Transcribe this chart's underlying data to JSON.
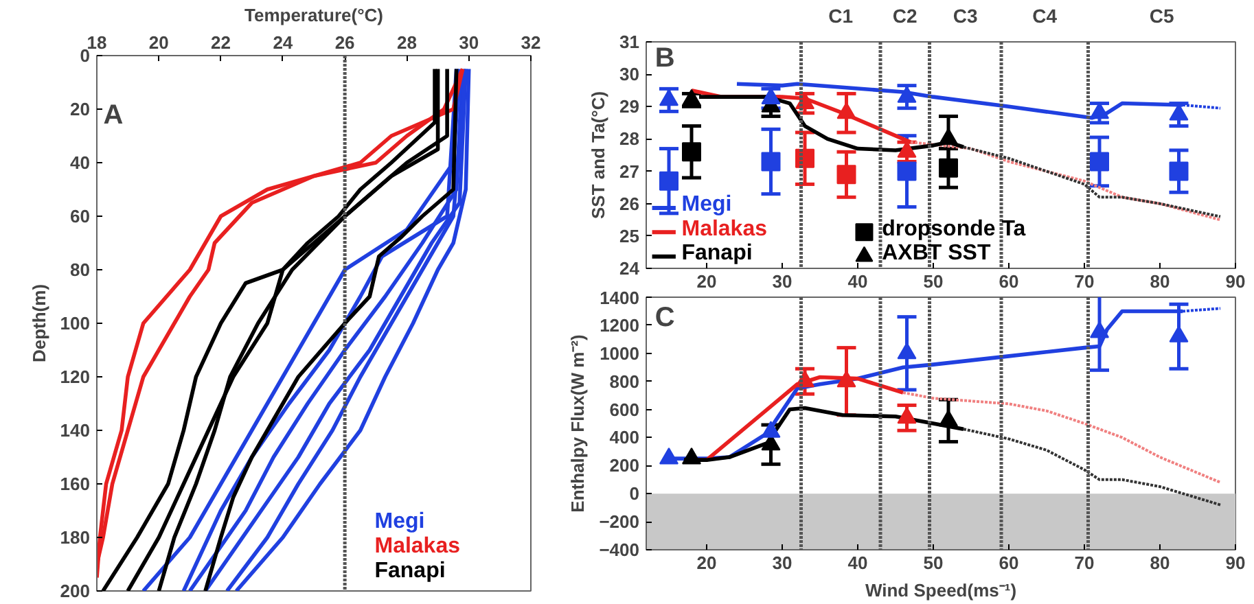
{
  "chart_data": [
    {
      "type": "line",
      "xlabel": "Temperature(°C)",
      "ylabel": "Depth(m)",
      "xlim": [
        18,
        32
      ],
      "xticks": [
        18,
        20,
        22,
        24,
        26,
        28,
        30,
        32
      ],
      "ylim": [
        200,
        0
      ],
      "yticks": [
        0,
        20,
        40,
        60,
        80,
        100,
        120,
        140,
        160,
        180,
        200
      ],
      "grid": false,
      "annotations": [
        "A"
      ],
      "ref_lines": [
        {
          "axis": "x",
          "value": 26,
          "line_style": "dotted",
          "color": "#555555"
        }
      ],
      "series": [
        {
          "name": "Megi",
          "color": "#2040e0",
          "x": [
            30,
            29.9,
            29.7,
            29.5,
            29,
            28.2,
            27.3,
            26.5,
            25.2,
            24,
            22.5
          ],
          "values": [
            5,
            50,
            60,
            70,
            80,
            100,
            120,
            140,
            160,
            180,
            200
          ]
        },
        {
          "color": "#2040e0",
          "x": [
            29.9,
            29.7,
            28.8,
            27.8,
            26.8,
            25.5,
            24.5,
            23.3,
            21.5
          ],
          "values": [
            5,
            55,
            70,
            90,
            110,
            130,
            150,
            170,
            200
          ]
        },
        {
          "color": "#2040e0",
          "x": [
            29.8,
            29.6,
            28.5,
            27.3,
            26,
            24.8,
            23.7,
            22.8,
            21
          ],
          "values": [
            5,
            50,
            70,
            90,
            110,
            130,
            150,
            170,
            200
          ]
        },
        {
          "color": "#2040e0",
          "x": [
            29.7,
            29.5,
            28,
            26,
            25,
            24,
            23,
            22,
            21,
            19.5
          ],
          "values": [
            5,
            40,
            65,
            80,
            100,
            120,
            140,
            160,
            180,
            200
          ]
        },
        {
          "color": "#2040e0",
          "x": [
            29.6,
            29.3,
            27.2,
            26.5,
            25.5,
            24.2,
            23,
            22,
            20.8
          ],
          "values": [
            5,
            60,
            75,
            90,
            110,
            130,
            150,
            170,
            200
          ]
        },
        {
          "color": "#2040e0",
          "x": [
            29.9,
            29.5,
            28.5,
            27.5,
            26.5,
            25.6,
            24.5,
            23.5,
            22.2
          ],
          "values": [
            5,
            60,
            80,
            100,
            120,
            140,
            160,
            180,
            200
          ]
        },
        {
          "name": "Malakas",
          "color": "#e82020",
          "x": [
            29.8,
            29.5,
            27.5,
            26.5,
            25,
            23,
            21.8,
            21.6,
            21,
            20.5,
            19.5,
            19,
            18.5,
            18.2,
            18
          ],
          "values": [
            5,
            20,
            30,
            40,
            45,
            55,
            70,
            80,
            90,
            100,
            120,
            140,
            160,
            180,
            190
          ]
        },
        {
          "color": "#e82020",
          "x": [
            29.8,
            29.2,
            28,
            27,
            25,
            23.5,
            22,
            21,
            19.5,
            19,
            18.8,
            18.3,
            18.1,
            18
          ],
          "values": [
            5,
            20,
            30,
            40,
            45,
            50,
            60,
            80,
            100,
            120,
            140,
            160,
            180,
            195
          ]
        },
        {
          "name": "Fanapi",
          "color": "#000000",
          "x": [
            28.9,
            28.9,
            27.5,
            26.5,
            25.8,
            24.8,
            24,
            22.8,
            22,
            21.2,
            20.8,
            20.3,
            19.3,
            18.2
          ],
          "values": [
            5,
            25,
            40,
            50,
            60,
            70,
            80,
            85,
            100,
            120,
            140,
            160,
            180,
            200
          ]
        },
        {
          "color": "#000000",
          "x": [
            29.3,
            29.3,
            28,
            26,
            24,
            23.5,
            22.4,
            21.6,
            20.8,
            20,
            19
          ],
          "values": [
            5,
            30,
            40,
            60,
            80,
            100,
            120,
            140,
            160,
            180,
            200
          ]
        },
        {
          "color": "#000000",
          "x": [
            29.6,
            29.5,
            28.5,
            27.8,
            27.1,
            26.8,
            26,
            24.5,
            23.5,
            23,
            22.4,
            22,
            21.5
          ],
          "values": [
            5,
            50,
            60,
            68,
            75,
            90,
            100,
            120,
            140,
            150,
            165,
            180,
            200
          ]
        },
        {
          "color": "#000000",
          "x": [
            29,
            29,
            27.5,
            26,
            24.3,
            23.2,
            22.3,
            21.8,
            21.2,
            20.5,
            20
          ],
          "values": [
            5,
            35,
            45,
            60,
            80,
            100,
            120,
            140,
            160,
            180,
            200
          ]
        }
      ]
    },
    {
      "type": "line",
      "ylabel": "SST and Ta(°C)",
      "xlim": [
        12,
        90
      ],
      "xticks": [
        20,
        30,
        40,
        50,
        60,
        70,
        80,
        90
      ],
      "ylim": [
        24,
        31
      ],
      "yticks": [
        24,
        25,
        26,
        27,
        28,
        29,
        30,
        31
      ],
      "grid": false,
      "legend": "bottom left",
      "annotations": [
        "B",
        "C1",
        "C2",
        "C3",
        "C4",
        "C5"
      ],
      "ref_lines": [
        {
          "axis": "x",
          "value": 32.5,
          "line_style": "dotted",
          "color": "#555555"
        },
        {
          "axis": "x",
          "value": 43,
          "line_style": "dotted",
          "color": "#555555"
        },
        {
          "axis": "x",
          "value": 49.5,
          "line_style": "dotted",
          "color": "#555555"
        },
        {
          "axis": "x",
          "value": 59,
          "line_style": "dotted",
          "color": "#555555"
        },
        {
          "axis": "x",
          "value": 70.5,
          "line_style": "dotted",
          "color": "#555555"
        }
      ],
      "series": [
        {
          "name": "Megi",
          "color": "#2040e0",
          "x": [
            24,
            30,
            32,
            46,
            50,
            60,
            71,
            73,
            75,
            83
          ],
          "values": [
            29.7,
            29.65,
            29.7,
            29.45,
            29.3,
            29.0,
            28.65,
            28.8,
            29.1,
            29.05
          ]
        },
        {
          "color": "#2040e0",
          "line_style": "dotted",
          "x": [
            83,
            88
          ],
          "values": [
            29.05,
            28.95
          ]
        },
        {
          "name": "Malakas",
          "color": "#e82020",
          "x": [
            18,
            20,
            22,
            30,
            33,
            38,
            42,
            47
          ],
          "values": [
            29.5,
            29.4,
            29.3,
            29.3,
            29.25,
            28.8,
            28.4,
            27.9
          ]
        },
        {
          "color": "#f08080",
          "line_style": "dotted",
          "x": [
            47,
            55,
            60,
            70,
            75,
            80,
            88
          ],
          "values": [
            27.9,
            27.7,
            27.3,
            26.7,
            26.2,
            26.0,
            25.5
          ]
        },
        {
          "name": "Fanapi",
          "color": "#000000",
          "x": [
            19,
            22,
            28,
            31,
            33,
            36,
            40,
            45,
            50,
            52,
            54
          ],
          "values": [
            29.3,
            29.3,
            29.3,
            29.1,
            28.4,
            28,
            27.7,
            27.65,
            27.8,
            27.9,
            27.75
          ]
        },
        {
          "color": "#333333",
          "line_style": "dotted",
          "x": [
            54,
            60,
            70,
            72,
            75,
            80,
            88
          ],
          "values": [
            27.75,
            27.4,
            26.6,
            26.2,
            26.2,
            26.0,
            25.6
          ]
        },
        {
          "type": "scatter",
          "marker": "square",
          "color": "#2040e0",
          "x": [
            15,
            28.5,
            46.5,
            72,
            82.5
          ],
          "values": [
            26.7,
            27.3,
            27.0,
            27.3,
            27.0
          ],
          "errors": [
            1.0,
            1.0,
            1.1,
            0.75,
            0.65
          ]
        },
        {
          "type": "scatter",
          "marker": "square",
          "color": "#e82020",
          "x": [
            33,
            38.5
          ],
          "values": [
            27.4,
            26.9
          ],
          "errors": [
            0.8,
            0.7
          ]
        },
        {
          "type": "scatter",
          "marker": "square",
          "name": "dropsonde Ta",
          "color": "#000000",
          "x": [
            18,
            52
          ],
          "values": [
            27.6,
            27.1
          ],
          "errors": [
            0.8,
            0.6
          ]
        },
        {
          "type": "scatter",
          "marker": "triangle",
          "color": "#e82020",
          "x": [
            33,
            38.5,
            46.5
          ],
          "values": [
            29.1,
            28.8,
            27.6
          ],
          "errors": [
            0.3,
            0.6,
            0.3
          ]
        },
        {
          "type": "scatter",
          "marker": "triangle",
          "name": "AXBT SST",
          "color": "#000000",
          "x": [
            18,
            28.5,
            52
          ],
          "values": [
            29.2,
            29.0,
            28.0
          ],
          "errors": [
            0.2,
            0.3,
            0.7
          ]
        },
        {
          "type": "scatter",
          "marker": "triangle",
          "color": "#2040e0",
          "x": [
            15,
            28.5,
            46.5,
            72,
            82.5
          ],
          "values": [
            29.2,
            29.25,
            29.3,
            28.8,
            28.75
          ],
          "errors": [
            0.35,
            0.3,
            0.35,
            0.3,
            0.35
          ]
        }
      ]
    },
    {
      "type": "line",
      "xlabel": "Wind Speed(ms⁻¹)",
      "ylabel": "Enthalpy Flux(W m⁻²)",
      "xlim": [
        12,
        90
      ],
      "xticks": [
        20,
        30,
        40,
        50,
        60,
        70,
        80,
        90
      ],
      "ylim": [
        -400,
        1400
      ],
      "yticks": [
        -400,
        -200,
        0,
        200,
        400,
        600,
        800,
        1000,
        1200,
        1400
      ],
      "grid": false,
      "annotations": [
        "C"
      ],
      "bands": [
        {
          "axis": "y",
          "from": -400,
          "to": 0,
          "color": "#c8c8c8"
        }
      ],
      "ref_lines": [
        {
          "axis": "x",
          "value": 32.5,
          "line_style": "dotted",
          "color": "#555555"
        },
        {
          "axis": "x",
          "value": 43,
          "line_style": "dotted",
          "color": "#555555"
        },
        {
          "axis": "x",
          "value": 49.5,
          "line_style": "dotted",
          "color": "#555555"
        },
        {
          "axis": "x",
          "value": 59,
          "line_style": "dotted",
          "color": "#555555"
        },
        {
          "axis": "x",
          "value": 70.5,
          "line_style": "dotted",
          "color": "#555555"
        }
      ],
      "series": [
        {
          "color": "#2040e0",
          "x": [
            15,
            20,
            23,
            28,
            32,
            35,
            40,
            46,
            50,
            60,
            70,
            72,
            73,
            75,
            83
          ],
          "values": [
            250,
            250,
            260,
            430,
            750,
            780,
            820,
            900,
            920,
            980,
            1040,
            1050,
            1170,
            1300,
            1300
          ]
        },
        {
          "color": "#2040e0",
          "line_style": "dotted",
          "x": [
            83,
            88
          ],
          "values": [
            1300,
            1320
          ]
        },
        {
          "color": "#e82020",
          "x": [
            18,
            20,
            28,
            32,
            35,
            40,
            46
          ],
          "values": [
            240,
            240,
            600,
            780,
            830,
            820,
            720
          ]
        },
        {
          "color": "#f08080",
          "line_style": "dotted",
          "x": [
            46,
            50,
            55,
            60,
            65,
            70,
            75,
            80,
            88
          ],
          "values": [
            720,
            680,
            660,
            640,
            590,
            500,
            400,
            260,
            80
          ]
        },
        {
          "color": "#000000",
          "x": [
            17,
            20,
            23,
            28,
            31,
            33,
            38,
            45,
            50,
            54
          ],
          "values": [
            240,
            240,
            260,
            360,
            600,
            610,
            560,
            550,
            500,
            460
          ]
        },
        {
          "color": "#333333",
          "line_style": "dotted",
          "x": [
            54,
            60,
            65,
            70,
            72,
            75,
            80,
            88
          ],
          "values": [
            460,
            390,
            310,
            170,
            100,
            100,
            50,
            -80
          ]
        },
        {
          "type": "scatter",
          "marker": "triangle",
          "color": "#e82020",
          "x": [
            33,
            38.5,
            46.5
          ],
          "values": [
            800,
            800,
            540
          ],
          "errors": [
            90,
            240,
            90
          ]
        },
        {
          "type": "scatter",
          "marker": "triangle",
          "color": "#000000",
          "x": [
            18,
            28.5,
            52
          ],
          "values": [
            250,
            350,
            520
          ],
          "errors": [
            null,
            140,
            150
          ]
        },
        {
          "type": "scatter",
          "marker": "triangle",
          "color": "#2040e0",
          "x": [
            15,
            28.5,
            46.5,
            72,
            82.5
          ],
          "values": [
            250,
            440,
            1000,
            1150,
            1120
          ],
          "errors": [
            null,
            null,
            260,
            270,
            230
          ]
        }
      ]
    }
  ]
}
